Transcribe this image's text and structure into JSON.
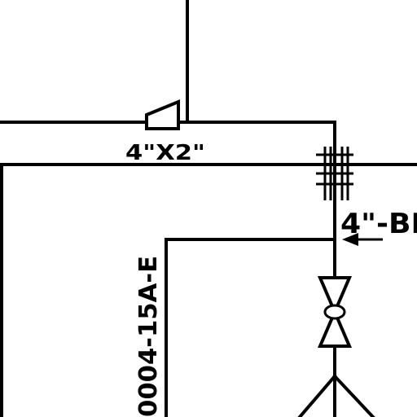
{
  "drawing": {
    "reducer_label": "4\"X2\"",
    "line_number_label": "0004-15A-E",
    "branch_label": "4\"-BI"
  },
  "symbols": {
    "reducer": "concentric-reducer-icon",
    "flange": "flange-pair-icon",
    "gate_valve": "gate-valve-icon",
    "flow_arrow": "flow-arrow-icon"
  }
}
